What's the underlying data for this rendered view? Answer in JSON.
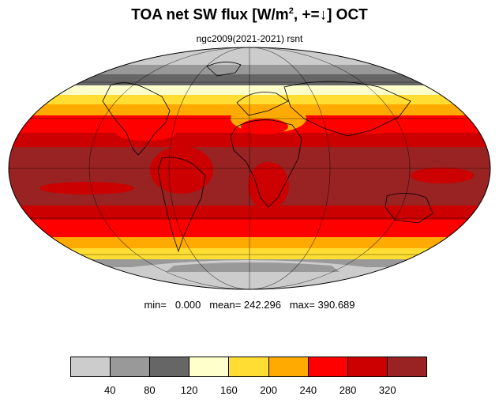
{
  "title": {
    "main": "TOA net SW flux [W/m",
    "sup": "2",
    "tail": ", +=↓]  OCT"
  },
  "subtitle": "ngc2009(2021-2021)   rsnt",
  "stats": "min=   0.000   mean= 242.296   max= 390.689",
  "legend": {
    "colors": [
      "#cccccc",
      "#999999",
      "#666666",
      "#ffffcc",
      "#ffdd33",
      "#ffaa00",
      "#ff0000",
      "#cc0000",
      "#992222"
    ],
    "ticks": [
      "40",
      "80",
      "120",
      "160",
      "200",
      "240",
      "280",
      "320"
    ]
  }
}
